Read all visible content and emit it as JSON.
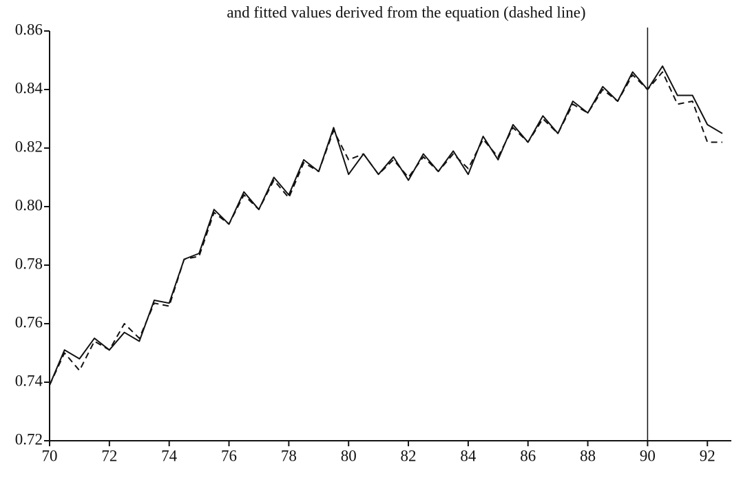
{
  "chart_data": {
    "type": "line",
    "title": "and fitted values derived from the equation (dashed line)",
    "x": [
      70,
      70.5,
      71,
      71.5,
      72,
      72.5,
      73,
      73.5,
      74,
      74.5,
      75,
      75.5,
      76,
      76.5,
      77,
      77.5,
      78,
      78.5,
      79,
      79.5,
      80,
      80.5,
      81,
      81.5,
      82,
      82.5,
      83,
      83.5,
      84,
      84.5,
      85,
      85.5,
      86,
      86.5,
      87,
      87.5,
      88,
      88.5,
      89,
      89.5,
      90,
      90.5,
      91,
      91.5,
      92,
      92.5
    ],
    "series": [
      {
        "color": "#111111",
        "style": "solid",
        "values": [
          0.739,
          0.751,
          0.748,
          0.755,
          0.751,
          0.757,
          0.754,
          0.768,
          0.767,
          0.782,
          0.784,
          0.799,
          0.794,
          0.805,
          0.799,
          0.81,
          0.804,
          0.816,
          0.812,
          0.827,
          0.811,
          0.818,
          0.811,
          0.817,
          0.809,
          0.818,
          0.812,
          0.819,
          0.811,
          0.824,
          0.816,
          0.828,
          0.822,
          0.831,
          0.825,
          0.836,
          0.832,
          0.841,
          0.836,
          0.846,
          0.84,
          0.848,
          0.838,
          0.838,
          0.828,
          0.825
        ]
      },
      {
        "color": "#111111",
        "style": "dashed",
        "values": [
          0.739,
          0.75,
          0.744,
          0.754,
          0.751,
          0.76,
          0.755,
          0.767,
          0.766,
          0.782,
          0.783,
          0.798,
          0.794,
          0.804,
          0.799,
          0.809,
          0.803,
          0.815,
          0.812,
          0.826,
          0.816,
          0.818,
          0.811,
          0.816,
          0.81,
          0.817,
          0.812,
          0.818,
          0.813,
          0.823,
          0.817,
          0.827,
          0.822,
          0.83,
          0.825,
          0.835,
          0.832,
          0.84,
          0.836,
          0.845,
          0.84,
          0.846,
          0.835,
          0.836,
          0.822,
          0.822
        ]
      }
    ],
    "xlim": [
      70,
      92.8
    ],
    "xticks": [
      70,
      72,
      74,
      76,
      78,
      80,
      82,
      84,
      86,
      88,
      90,
      92
    ],
    "ylim": [
      0.72,
      0.86
    ],
    "yticks": [
      0.72,
      0.74,
      0.76,
      0.78,
      {
        "value": 0.8,
        "label": "0.80"
      },
      0.82,
      0.84,
      0.86
    ],
    "vline_x": 90,
    "grid": false
  }
}
